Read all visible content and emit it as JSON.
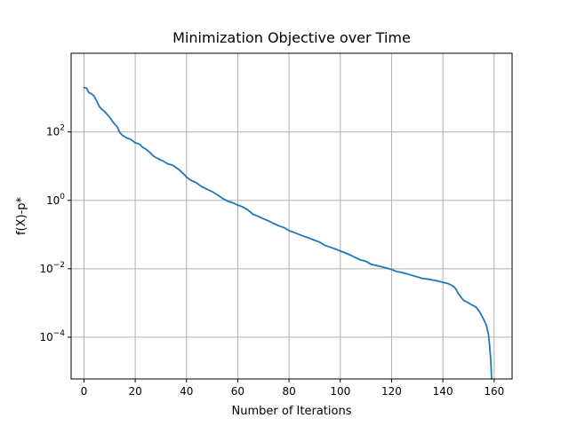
{
  "chart_data": {
    "type": "line",
    "title": "Minimization Objective over Time",
    "xlabel": "Number of Iterations",
    "ylabel": "f(X)-p*",
    "yscale": "log",
    "xlim": [
      -5,
      167
    ],
    "ylim": [
      6e-06,
      20000.0
    ],
    "grid": true,
    "color": "#1f77b4",
    "x_ticks": [
      0,
      20,
      40,
      60,
      80,
      100,
      120,
      140,
      160
    ],
    "y_ticks": [
      {
        "value": 100,
        "base": "10",
        "exp": "2"
      },
      {
        "value": 1,
        "base": "10",
        "exp": "0"
      },
      {
        "value": 0.01,
        "base": "10",
        "exp": "−2"
      },
      {
        "value": 0.0001,
        "base": "10",
        "exp": "−4"
      }
    ],
    "series": [
      {
        "points": [
          [
            0,
            2000
          ],
          [
            1,
            1900
          ],
          [
            2,
            1400
          ],
          [
            3,
            1300
          ],
          [
            4,
            1100
          ],
          [
            5,
            800
          ],
          [
            6,
            550
          ],
          [
            7,
            460
          ],
          [
            8,
            400
          ],
          [
            9,
            330
          ],
          [
            10,
            270
          ],
          [
            11,
            210
          ],
          [
            12,
            170
          ],
          [
            13,
            140
          ],
          [
            14,
            95
          ],
          [
            15,
            80
          ],
          [
            16,
            72
          ],
          [
            17,
            65
          ],
          [
            18,
            62
          ],
          [
            19,
            55
          ],
          [
            20,
            48
          ],
          [
            21,
            46
          ],
          [
            22,
            42
          ],
          [
            23,
            35
          ],
          [
            24,
            32
          ],
          [
            25,
            28
          ],
          [
            26,
            24
          ],
          [
            27,
            20
          ],
          [
            28,
            18
          ],
          [
            29,
            16.5
          ],
          [
            30,
            15
          ],
          [
            31,
            14
          ],
          [
            32,
            12.5
          ],
          [
            33,
            11.5
          ],
          [
            34,
            11
          ],
          [
            35,
            10.2
          ],
          [
            36,
            9
          ],
          [
            37,
            8
          ],
          [
            38,
            6.8
          ],
          [
            39,
            5.8
          ],
          [
            40,
            4.8
          ],
          [
            41,
            4.2
          ],
          [
            42,
            3.8
          ],
          [
            43,
            3.5
          ],
          [
            44,
            3.2
          ],
          [
            45,
            2.8
          ],
          [
            46,
            2.5
          ],
          [
            47,
            2.3
          ],
          [
            48,
            2.1
          ],
          [
            49,
            1.95
          ],
          [
            50,
            1.8
          ],
          [
            52,
            1.45
          ],
          [
            54,
            1.15
          ],
          [
            56,
            0.95
          ],
          [
            58,
            0.85
          ],
          [
            60,
            0.73
          ],
          [
            62,
            0.64
          ],
          [
            64,
            0.52
          ],
          [
            66,
            0.39
          ],
          [
            68,
            0.34
          ],
          [
            70,
            0.29
          ],
          [
            72,
            0.25
          ],
          [
            74,
            0.21
          ],
          [
            76,
            0.18
          ],
          [
            78,
            0.16
          ],
          [
            80,
            0.13
          ],
          [
            82,
            0.115
          ],
          [
            84,
            0.1
          ],
          [
            86,
            0.088
          ],
          [
            88,
            0.078
          ],
          [
            90,
            0.068
          ],
          [
            92,
            0.06
          ],
          [
            94,
            0.048
          ],
          [
            96,
            0.043
          ],
          [
            98,
            0.038
          ],
          [
            100,
            0.033
          ],
          [
            102,
            0.029
          ],
          [
            104,
            0.025
          ],
          [
            106,
            0.021
          ],
          [
            108,
            0.018
          ],
          [
            110,
            0.0165
          ],
          [
            112,
            0.0135
          ],
          [
            114,
            0.0125
          ],
          [
            116,
            0.0115
          ],
          [
            118,
            0.0105
          ],
          [
            120,
            0.0095
          ],
          [
            122,
            0.0083
          ],
          [
            124,
            0.0078
          ],
          [
            126,
            0.0071
          ],
          [
            128,
            0.0064
          ],
          [
            130,
            0.0058
          ],
          [
            132,
            0.0052
          ],
          [
            134,
            0.005
          ],
          [
            136,
            0.0047
          ],
          [
            138,
            0.0044
          ],
          [
            140,
            0.004
          ],
          [
            142,
            0.0037
          ],
          [
            143,
            0.0034
          ],
          [
            144,
            0.0031
          ],
          [
            145,
            0.0026
          ],
          [
            146,
            0.0019
          ],
          [
            147,
            0.0015
          ],
          [
            148,
            0.0012
          ],
          [
            149,
            0.0011
          ],
          [
            150,
            0.001
          ],
          [
            151,
            0.0009
          ],
          [
            152,
            0.00083
          ],
          [
            153,
            0.00075
          ],
          [
            154,
            0.0006
          ],
          [
            155,
            0.00045
          ],
          [
            156,
            0.00032
          ],
          [
            157,
            0.00022
          ],
          [
            157.8,
            0.00012
          ],
          [
            158.3,
            5e-05
          ],
          [
            158.7,
            2e-05
          ],
          [
            159,
            6e-06
          ]
        ]
      }
    ]
  }
}
